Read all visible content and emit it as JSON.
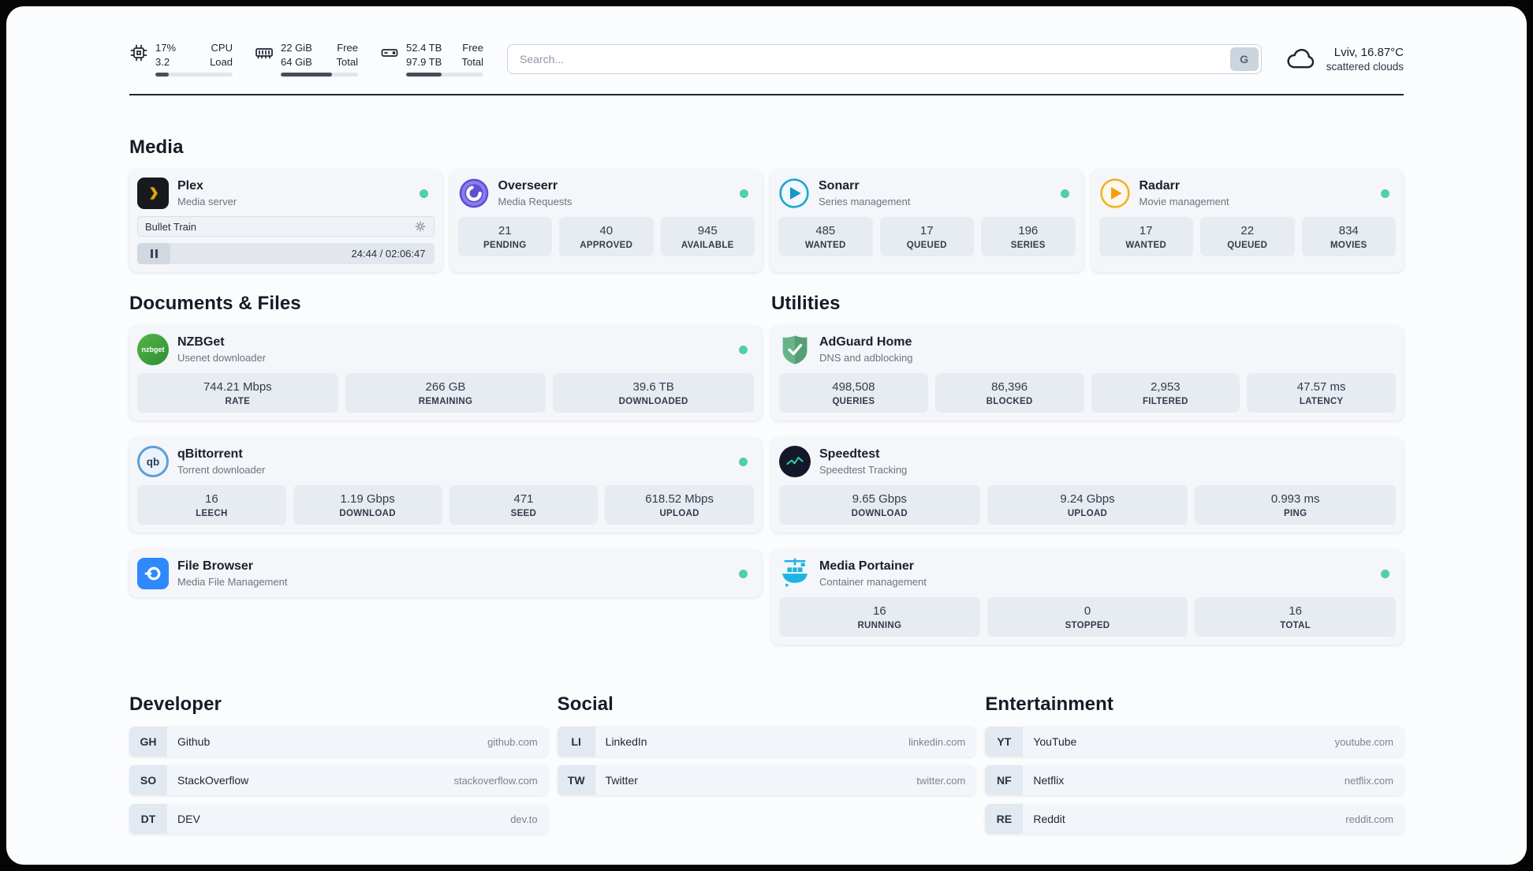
{
  "colors": {
    "status_online": "#4fd1a5",
    "page_bg": "#fbfcfe",
    "card_bg": "#f4f6f9",
    "stat_bg": "#e7ecf2",
    "divider": "#20262f",
    "plex_yellow": "#e5a00d",
    "radarr_yellow": "#f59f0a",
    "sonarr_blue": "#1597c7",
    "adguard_green": "#67b487",
    "portainer_blue": "#1fb3e0",
    "filebrowser_blue": "#2f89fc"
  },
  "topbar": {
    "cpu": {
      "value_top": "17%",
      "value_bottom": "3.2",
      "label_top": "CPU",
      "label_bottom": "Load",
      "progress_percent": 17
    },
    "memory": {
      "value_top": "22 GiB",
      "value_bottom": "64 GiB",
      "label_top": "Free",
      "label_bottom": "Total",
      "progress_percent": 66
    },
    "disk": {
      "value_top": "52.4 TB",
      "value_bottom": "97.9 TB",
      "label_top": "Free",
      "label_bottom": "Total",
      "progress_percent": 46
    },
    "search": {
      "placeholder": "Search...",
      "button_label": "G"
    },
    "weather": {
      "location": "Lviv, 16.87°C",
      "condition": "scattered clouds"
    }
  },
  "media": {
    "title": "Media",
    "plex": {
      "name": "Plex",
      "description": "Media server",
      "now_playing_title": "Bullet Train",
      "time": "24:44 / 02:06:47"
    },
    "overseerr": {
      "name": "Overseerr",
      "description": "Media Requests",
      "stats": [
        {
          "value": "21",
          "label": "PENDING"
        },
        {
          "value": "40",
          "label": "APPROVED"
        },
        {
          "value": "945",
          "label": "AVAILABLE"
        }
      ]
    },
    "sonarr": {
      "name": "Sonarr",
      "description": "Series management",
      "stats": [
        {
          "value": "485",
          "label": "WANTED"
        },
        {
          "value": "17",
          "label": "QUEUED"
        },
        {
          "value": "196",
          "label": "SERIES"
        }
      ]
    },
    "radarr": {
      "name": "Radarr",
      "description": "Movie management",
      "stats": [
        {
          "value": "17",
          "label": "WANTED"
        },
        {
          "value": "22",
          "label": "QUEUED"
        },
        {
          "value": "834",
          "label": "MOVIES"
        }
      ]
    }
  },
  "documents": {
    "title": "Documents & Files",
    "nzbget": {
      "name": "NZBGet",
      "description": "Usenet downloader",
      "icon_text": "nzbget",
      "stats": [
        {
          "value": "744.21 Mbps",
          "label": "RATE"
        },
        {
          "value": "266 GB",
          "label": "REMAINING"
        },
        {
          "value": "39.6 TB",
          "label": "DOWNLOADED"
        }
      ]
    },
    "qbittorrent": {
      "name": "qBittorrent",
      "description": "Torrent downloader",
      "icon_text": "qb",
      "stats": [
        {
          "value": "16",
          "label": "LEECH"
        },
        {
          "value": "1.19 Gbps",
          "label": "DOWNLOAD"
        },
        {
          "value": "471",
          "label": "SEED"
        },
        {
          "value": "618.52 Mbps",
          "label": "UPLOAD"
        }
      ]
    },
    "filebrowser": {
      "name": "File Browser",
      "description": "Media File Management"
    }
  },
  "utilities": {
    "title": "Utilities",
    "adguard": {
      "name": "AdGuard Home",
      "description": "DNS and adblocking",
      "stats": [
        {
          "value": "498,508",
          "label": "QUERIES"
        },
        {
          "value": "86,396",
          "label": "BLOCKED"
        },
        {
          "value": "2,953",
          "label": "FILTERED"
        },
        {
          "value": "47.57 ms",
          "label": "LATENCY"
        }
      ]
    },
    "speedtest": {
      "name": "Speedtest",
      "description": "Speedtest Tracking",
      "stats": [
        {
          "value": "9.65 Gbps",
          "label": "DOWNLOAD"
        },
        {
          "value": "9.24 Gbps",
          "label": "UPLOAD"
        },
        {
          "value": "0.993 ms",
          "label": "PING"
        }
      ]
    },
    "portainer": {
      "name": "Media Portainer",
      "description": "Container management",
      "stats": [
        {
          "value": "16",
          "label": "RUNNING"
        },
        {
          "value": "0",
          "label": "STOPPED"
        },
        {
          "value": "16",
          "label": "TOTAL"
        }
      ]
    }
  },
  "bookmarks": {
    "developer": {
      "title": "Developer",
      "items": [
        {
          "abbr": "GH",
          "name": "Github",
          "domain": "github.com"
        },
        {
          "abbr": "SO",
          "name": "StackOverflow",
          "domain": "stackoverflow.com"
        },
        {
          "abbr": "DT",
          "name": "DEV",
          "domain": "dev.to"
        }
      ]
    },
    "social": {
      "title": "Social",
      "items": [
        {
          "abbr": "LI",
          "name": "LinkedIn",
          "domain": "linkedin.com"
        },
        {
          "abbr": "TW",
          "name": "Twitter",
          "domain": "twitter.com"
        }
      ]
    },
    "entertainment": {
      "title": "Entertainment",
      "items": [
        {
          "abbr": "YT",
          "name": "YouTube",
          "domain": "youtube.com"
        },
        {
          "abbr": "NF",
          "name": "Netflix",
          "domain": "netflix.com"
        },
        {
          "abbr": "RE",
          "name": "Reddit",
          "domain": "reddit.com"
        }
      ]
    }
  }
}
